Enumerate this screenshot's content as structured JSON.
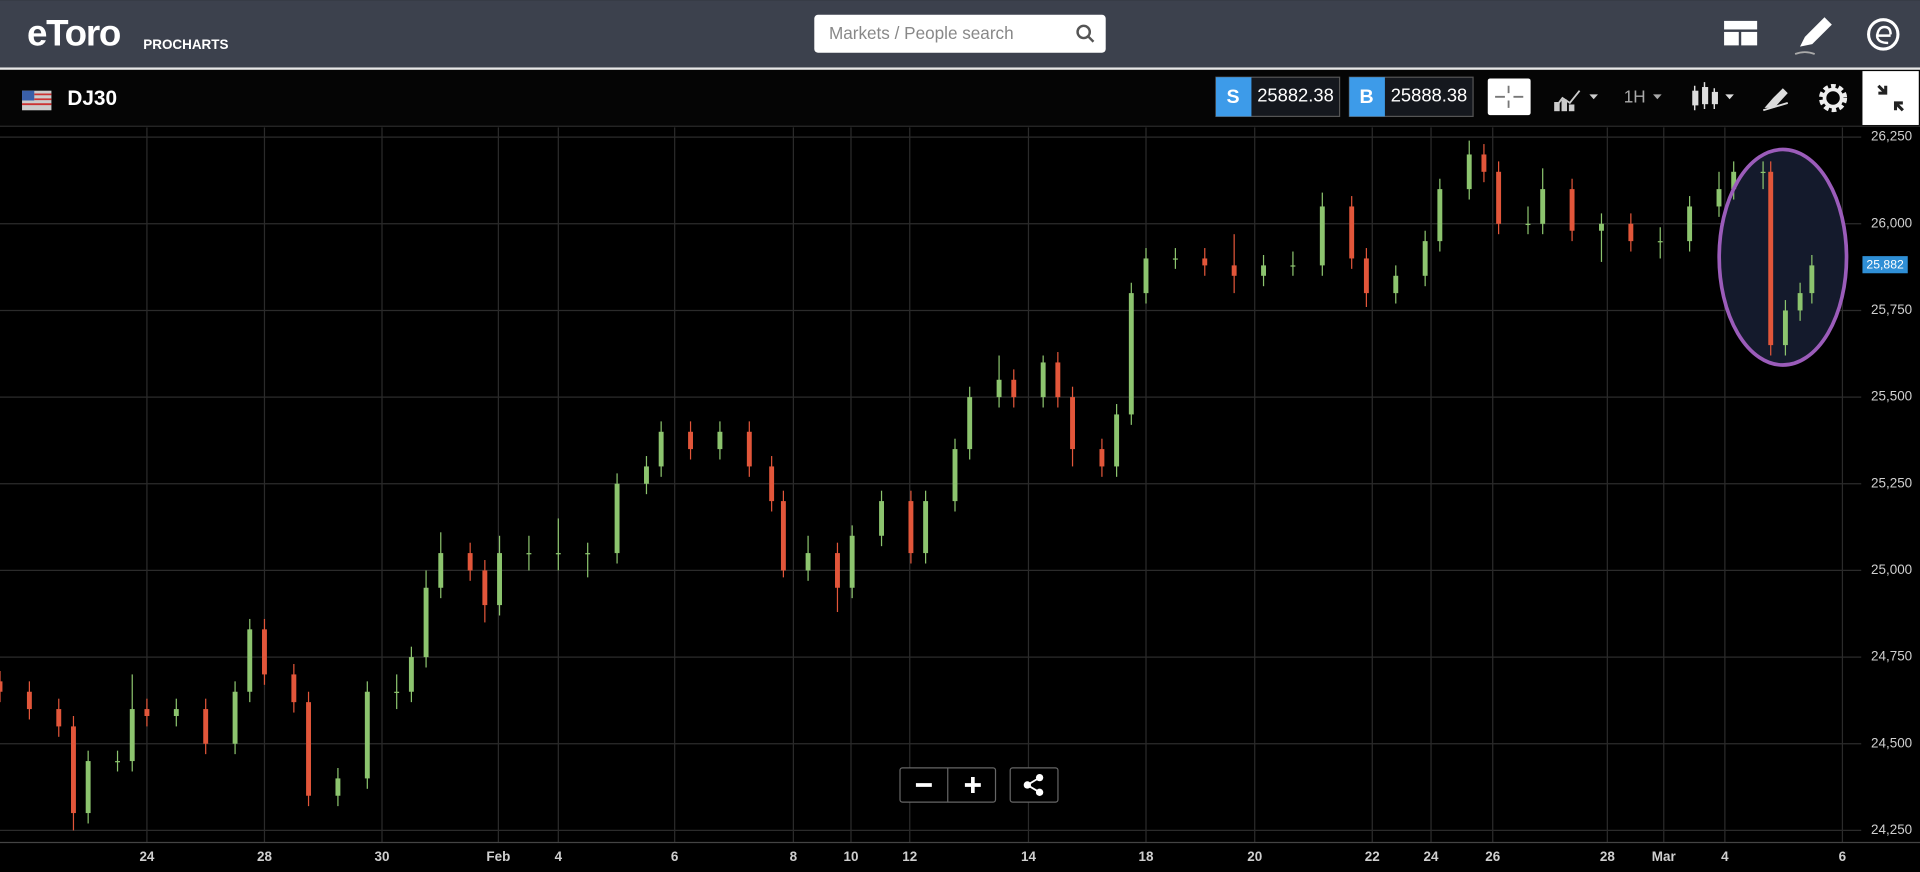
{
  "header": {
    "logo": "eToro",
    "product": "PROCHARTS",
    "search_placeholder": "Markets / People search"
  },
  "toolbar": {
    "instrument": "DJ30",
    "sell_label": "S",
    "sell_price": 25882.38,
    "buy_label": "B",
    "buy_price": 25888.38,
    "timeframe": "1H"
  },
  "chart_data": {
    "type": "candlestick",
    "x": [
      0,
      0.5,
      1,
      1.25,
      1.5,
      2,
      2.25,
      2.5,
      3,
      3.5,
      4,
      4.25,
      4.5,
      5,
      5.25,
      5.75,
      6.25,
      6.75,
      7,
      7.25,
      7.5,
      8,
      8.25,
      8.5,
      9,
      9.5,
      10,
      10.5,
      11,
      11.25,
      11.75,
      12.25,
      12.75,
      13.13,
      13.33,
      13.75,
      14.25,
      14.5,
      15,
      15.5,
      15.75,
      16.25,
      16.5,
      17,
      17.25,
      17.75,
      18,
      18.25,
      18.75,
      19,
      19.25,
      19.5,
      20,
      20.5,
      21,
      21.5,
      22,
      22.5,
      23,
      23.25,
      23.75,
      24.25,
      24.5,
      25,
      25.25,
      25.5,
      26,
      26.25,
      26.75,
      27.25,
      27.75,
      28.25,
      28.75,
      29.25,
      29.5,
      30,
      30.13,
      30.38,
      30.63,
      30.83
    ],
    "open": [
      24680,
      24650,
      24600,
      24550,
      24300,
      24450,
      24450,
      24600,
      24580,
      24600,
      24500,
      24650,
      24830,
      24700,
      24620,
      24350,
      24400,
      24650,
      24650,
      24750,
      24950,
      25050,
      25000,
      24900,
      25050,
      25050,
      25050,
      25050,
      25250,
      25300,
      25400,
      25350,
      25400,
      25300,
      25200,
      25000,
      25050,
      24950,
      25100,
      25200,
      25050,
      25200,
      25350,
      25500,
      25550,
      25500,
      25600,
      25500,
      25350,
      25300,
      25450,
      25800,
      25900,
      25900,
      25880,
      25850,
      25880,
      25880,
      26050,
      25900,
      25800,
      25850,
      25950,
      26100,
      26200,
      26150,
      26000,
      26000,
      26100,
      25980,
      26000,
      25950,
      25950,
      26050,
      26100,
      26150,
      26150,
      25650,
      25750,
      25800
    ],
    "high": [
      24710,
      24680,
      24630,
      24580,
      24480,
      24480,
      24700,
      24630,
      24630,
      24630,
      24680,
      24860,
      24860,
      24730,
      24650,
      24430,
      24680,
      24700,
      24780,
      25000,
      25110,
      25080,
      25030,
      25100,
      25100,
      25150,
      25080,
      25280,
      25330,
      25430,
      25430,
      25430,
      25430,
      25330,
      25230,
      25100,
      25080,
      25130,
      25230,
      25230,
      25230,
      25380,
      25530,
      25620,
      25580,
      25620,
      25630,
      25530,
      25380,
      25480,
      25830,
      25930,
      25930,
      25930,
      25970,
      25910,
      25920,
      26090,
      26080,
      25930,
      25880,
      25980,
      26130,
      26240,
      26230,
      26180,
      26050,
      26160,
      26130,
      26030,
      26030,
      25990,
      26080,
      26150,
      26180,
      26180,
      26180,
      25780,
      25830,
      25910
    ],
    "low": [
      24620,
      24570,
      24520,
      24250,
      24270,
      24420,
      24420,
      24550,
      24550,
      24470,
      24470,
      24620,
      24670,
      24590,
      24320,
      24320,
      24370,
      24600,
      24620,
      24720,
      24920,
      24970,
      24850,
      24870,
      25000,
      25000,
      24980,
      25020,
      25220,
      25270,
      25320,
      25320,
      25270,
      25170,
      24980,
      24970,
      24880,
      24920,
      25070,
      25020,
      25020,
      25170,
      25320,
      25470,
      25470,
      25470,
      25470,
      25300,
      25270,
      25270,
      25420,
      25770,
      25870,
      25850,
      25800,
      25820,
      25850,
      25850,
      25870,
      25760,
      25770,
      25820,
      25920,
      26070,
      26120,
      25970,
      25970,
      25970,
      25950,
      25890,
      25920,
      25900,
      25920,
      26020,
      26070,
      26100,
      25620,
      25620,
      25720,
      25770
    ],
    "close": [
      24650,
      24600,
      24550,
      24300,
      24450,
      24450,
      24600,
      24580,
      24600,
      24500,
      24650,
      24830,
      24700,
      24620,
      24350,
      24400,
      24650,
      24650,
      24750,
      24950,
      25050,
      25000,
      24900,
      25050,
      25050,
      25050,
      25050,
      25250,
      25300,
      25400,
      25350,
      25400,
      25300,
      25200,
      25000,
      25050,
      24950,
      25100,
      25200,
      25050,
      25200,
      25350,
      25500,
      25550,
      25500,
      25600,
      25500,
      25350,
      25300,
      25450,
      25800,
      25900,
      25900,
      25880,
      25850,
      25880,
      25880,
      26050,
      25900,
      25800,
      25850,
      25950,
      26100,
      26200,
      26150,
      26000,
      26000,
      26100,
      25980,
      26000,
      25950,
      25950,
      26050,
      26100,
      26150,
      26150,
      25650,
      25750,
      25800,
      25880
    ],
    "up_color": "#8cc46e",
    "down_color": "#e2563a",
    "xlim": [
      0,
      31.67
    ],
    "ylim": [
      24215,
      26278
    ],
    "xticks": [
      {
        "value": 2.5,
        "label": "24"
      },
      {
        "value": 4.5,
        "label": "28"
      },
      {
        "value": 6.5,
        "label": "30"
      },
      {
        "value": 8.48,
        "label": "Feb"
      },
      {
        "value": 9.5,
        "label": "4"
      },
      {
        "value": 11.48,
        "label": "6"
      },
      {
        "value": 13.5,
        "label": "8"
      },
      {
        "value": 14.48,
        "label": "10"
      },
      {
        "value": 15.48,
        "label": "12"
      },
      {
        "value": 17.5,
        "label": "14"
      },
      {
        "value": 19.5,
        "label": "18"
      },
      {
        "value": 21.35,
        "label": "20"
      },
      {
        "value": 23.35,
        "label": "22"
      },
      {
        "value": 24.35,
        "label": "24"
      },
      {
        "value": 25.4,
        "label": "26"
      },
      {
        "value": 27.35,
        "label": "28"
      },
      {
        "value": 28.31,
        "label": "Mar"
      },
      {
        "value": 29.35,
        "label": "4"
      },
      {
        "value": 31.35,
        "label": "6"
      }
    ],
    "yticks": [
      {
        "value": 24250,
        "label": "24,250"
      },
      {
        "value": 24500,
        "label": "24,500"
      },
      {
        "value": 24750,
        "label": "24,750"
      },
      {
        "value": 25000,
        "label": "25,000"
      },
      {
        "value": 25250,
        "label": "25,250"
      },
      {
        "value": 25500,
        "label": "25,500"
      },
      {
        "value": 25750,
        "label": "25,750"
      },
      {
        "value": 26000,
        "label": "26,000"
      },
      {
        "value": 26250,
        "label": "26,250"
      }
    ],
    "grid": true,
    "last_price": {
      "value": 25882,
      "label": "25,882"
    }
  }
}
